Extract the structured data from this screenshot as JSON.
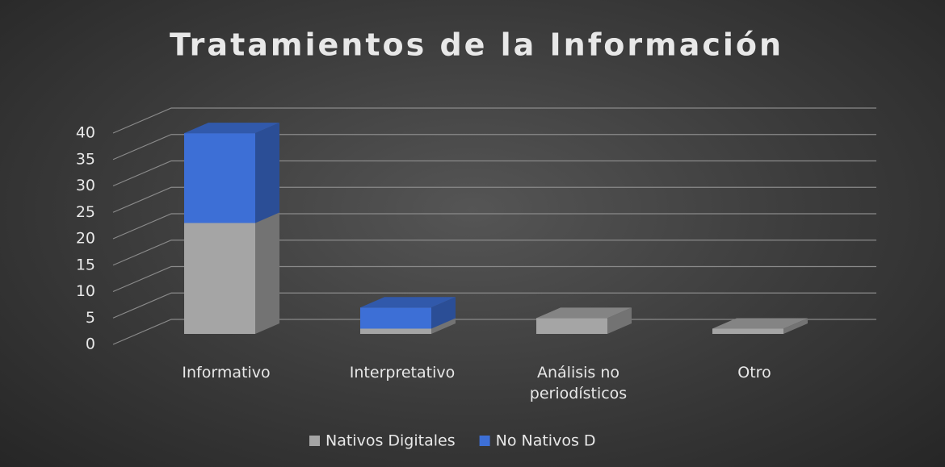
{
  "chart_data": {
    "type": "bar3d_stacked",
    "title": "Tratamientos de la Información",
    "categories": [
      "Informativo",
      "Interpretativo",
      "Análisis no periodísticos",
      "Otro"
    ],
    "series": [
      {
        "name": "Nativos Digitales",
        "color": "#a5a5a5",
        "values": [
          21,
          1,
          3,
          1
        ]
      },
      {
        "name": "No Nativos D",
        "color": "#3d6fd6",
        "values": [
          17,
          4,
          0,
          0
        ]
      }
    ],
    "ylim": [
      0,
      40
    ],
    "yticks": [
      0,
      5,
      10,
      15,
      20,
      25,
      30,
      35,
      40
    ],
    "grid": true,
    "legend": "bottom"
  }
}
